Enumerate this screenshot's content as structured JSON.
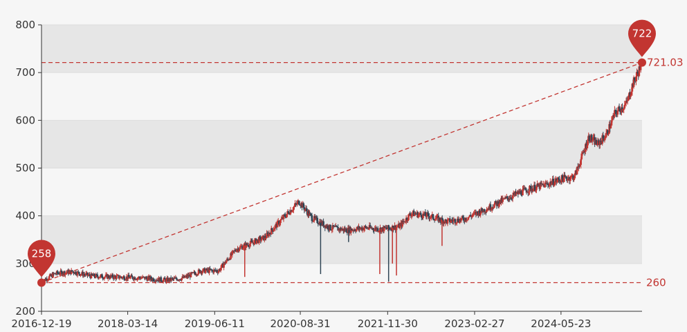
{
  "chart_data": {
    "type": "candlestick",
    "title": "",
    "xlabel": "",
    "ylabel": "",
    "x_range": [
      "2016-12-19",
      "2025-07-20"
    ],
    "ylim": [
      200,
      800
    ],
    "y_ticks": [
      200,
      300,
      400,
      500,
      600,
      700,
      800
    ],
    "x_tick_labels": [
      "2016-12-19",
      "2018-03-14",
      "2019-06-11",
      "2020-08-31",
      "2021-11-30",
      "2023-02-27",
      "2024-05-23"
    ],
    "grid": "horizontal bands",
    "colors": {
      "up": "#c23531",
      "down": "#2f4554",
      "band_dark": "#e6e6e6",
      "band_light": "#f6f6f6",
      "markline": "#c23531",
      "axis": "#333333"
    },
    "series_trend": [
      {
        "date": "2016-12-19",
        "value": 262
      },
      {
        "date": "2017-03-01",
        "value": 279
      },
      {
        "date": "2017-06-01",
        "value": 283
      },
      {
        "date": "2017-09-01",
        "value": 274
      },
      {
        "date": "2018-01-01",
        "value": 272
      },
      {
        "date": "2018-06-01",
        "value": 270
      },
      {
        "date": "2018-10-01",
        "value": 265
      },
      {
        "date": "2019-01-01",
        "value": 270
      },
      {
        "date": "2019-04-01",
        "value": 285
      },
      {
        "date": "2019-07-01",
        "value": 285
      },
      {
        "date": "2019-10-01",
        "value": 330
      },
      {
        "date": "2019-12-01",
        "value": 340
      },
      {
        "date": "2020-03-01",
        "value": 355
      },
      {
        "date": "2020-06-01",
        "value": 395
      },
      {
        "date": "2020-08-25",
        "value": 430
      },
      {
        "date": "2020-11-01",
        "value": 395
      },
      {
        "date": "2021-02-01",
        "value": 375
      },
      {
        "date": "2021-05-01",
        "value": 370
      },
      {
        "date": "2021-08-01",
        "value": 375
      },
      {
        "date": "2021-11-01",
        "value": 372
      },
      {
        "date": "2022-02-01",
        "value": 378
      },
      {
        "date": "2022-04-01",
        "value": 405
      },
      {
        "date": "2022-07-01",
        "value": 400
      },
      {
        "date": "2022-10-01",
        "value": 388
      },
      {
        "date": "2023-01-01",
        "value": 393
      },
      {
        "date": "2023-05-01",
        "value": 415
      },
      {
        "date": "2023-09-01",
        "value": 440
      },
      {
        "date": "2023-12-01",
        "value": 455
      },
      {
        "date": "2024-03-01",
        "value": 465
      },
      {
        "date": "2024-06-01",
        "value": 478
      },
      {
        "date": "2024-08-01",
        "value": 482
      },
      {
        "date": "2024-09-15",
        "value": 530
      },
      {
        "date": "2024-10-15",
        "value": 565
      },
      {
        "date": "2024-12-01",
        "value": 550
      },
      {
        "date": "2025-01-15",
        "value": 570
      },
      {
        "date": "2025-03-01",
        "value": 615
      },
      {
        "date": "2025-05-01",
        "value": 635
      },
      {
        "date": "2025-06-01",
        "value": 675
      },
      {
        "date": "2025-07-15",
        "value": 715
      }
    ],
    "spikes": [
      {
        "date": "2019-11-15",
        "low": 272,
        "type": "up"
      },
      {
        "date": "2020-12-15",
        "low": 278,
        "type": "down"
      },
      {
        "date": "2021-05-10",
        "low": 345,
        "type": "down"
      },
      {
        "date": "2021-10-20",
        "low": 278,
        "type": "up"
      },
      {
        "date": "2021-12-05",
        "low": 262,
        "type": "down"
      },
      {
        "date": "2021-12-25",
        "low": 300,
        "type": "up"
      },
      {
        "date": "2022-01-15",
        "low": 275,
        "type": "up"
      },
      {
        "date": "2022-09-10",
        "low": 337,
        "type": "up"
      }
    ],
    "mark_points": [
      {
        "label": "258",
        "date": "2016-12-19",
        "value": 258
      },
      {
        "label": "722",
        "date": "2025-07-20",
        "value": 722
      }
    ],
    "mark_lines": [
      {
        "label": "721.03",
        "value": 721.03
      },
      {
        "label": "260",
        "value": 260
      }
    ],
    "trend_line": {
      "from": {
        "date": "2016-12-19",
        "value": 260
      },
      "to": {
        "date": "2025-07-20",
        "value": 721.03
      }
    }
  }
}
